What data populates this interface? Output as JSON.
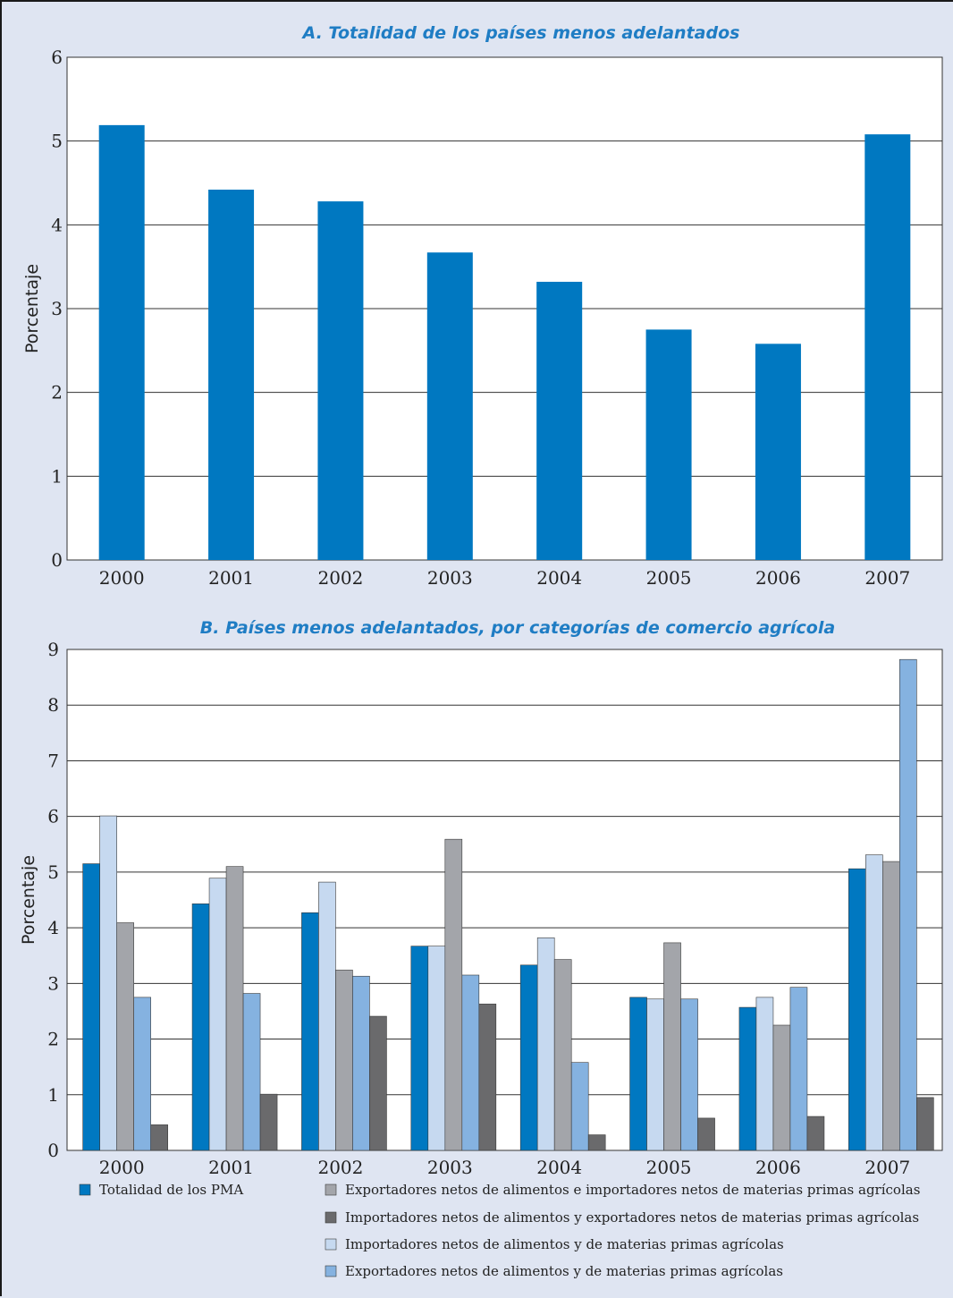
{
  "chart_data": [
    {
      "type": "bar",
      "title": "A. Totalidad de los países menos adelantados",
      "ylabel": "Porcentaje",
      "ylim": [
        0,
        6
      ],
      "yticks": [
        0,
        1,
        2,
        3,
        4,
        5,
        6
      ],
      "grid": true,
      "categories": [
        "2000",
        "2001",
        "2002",
        "2003",
        "2004",
        "2005",
        "2006",
        "2007"
      ],
      "values": [
        5.19,
        4.42,
        4.28,
        3.67,
        3.32,
        2.75,
        2.58,
        5.08
      ],
      "colors": [
        "#0078c1"
      ]
    },
    {
      "type": "bar",
      "title": "B. Países menos adelantados, por categorías de comercio agrícola",
      "ylabel": "Porcentaje",
      "ylim": [
        0,
        9
      ],
      "yticks": [
        0,
        1,
        2,
        3,
        4,
        5,
        6,
        7,
        8,
        9
      ],
      "grid": true,
      "legend_position": "bottom",
      "categories": [
        "2000",
        "2001",
        "2002",
        "2003",
        "2004",
        "2005",
        "2006",
        "2007"
      ],
      "series": [
        {
          "name": "Totalidad de los PMA",
          "color": "#0078c1",
          "values": [
            5.15,
            4.43,
            4.27,
            3.67,
            3.33,
            2.75,
            2.57,
            5.06
          ]
        },
        {
          "name": "Importadores netos de alimentos y de materias primas agrícolas",
          "color": "#c6d9f0",
          "values": [
            6.01,
            4.89,
            4.82,
            3.67,
            3.82,
            2.72,
            2.75,
            5.31
          ]
        },
        {
          "name": "Exportadores netos de alimentos e importadores netos de materias primas agrícolas",
          "color": "#a3a5aa",
          "values": [
            4.09,
            5.1,
            3.24,
            5.59,
            3.43,
            3.73,
            2.25,
            5.19
          ]
        },
        {
          "name": "Exportadores netos de alimentos y de materias primas agrícolas",
          "color": "#85b2e0",
          "values": [
            2.75,
            2.82,
            3.13,
            3.15,
            1.58,
            2.72,
            2.93,
            8.82
          ]
        },
        {
          "name": "Importadores netos de alimentos y exportadores netos de materias primas agrícolas",
          "color": "#6a6a6c",
          "values": [
            0.46,
            1.01,
            2.41,
            2.63,
            0.28,
            0.58,
            0.61,
            0.95
          ]
        }
      ],
      "legend_order": [
        0,
        2,
        4,
        1,
        3
      ]
    }
  ]
}
